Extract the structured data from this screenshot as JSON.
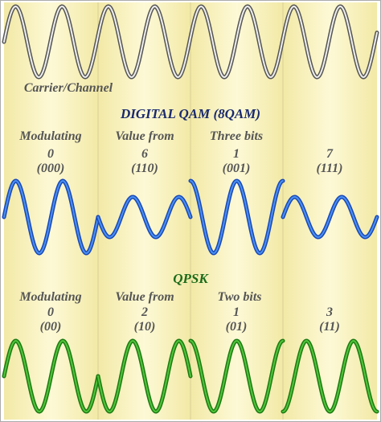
{
  "carrier": {
    "label": "Carrier/Channel"
  },
  "qam": {
    "title": "DIGITAL QAM (8QAM)",
    "header": [
      "Modulating",
      "Value from",
      "Three bits"
    ],
    "symbols": [
      {
        "value": "0",
        "bits": "(000)"
      },
      {
        "value": "6",
        "bits": "(110)"
      },
      {
        "value": "1",
        "bits": "(001)"
      },
      {
        "value": "7",
        "bits": "(111)"
      }
    ]
  },
  "qpsk": {
    "title": "QPSK",
    "header": [
      "Modulating",
      "Value from",
      "Two bits"
    ],
    "symbols": [
      {
        "value": "0",
        "bits": "(00)"
      },
      {
        "value": "2",
        "bits": "(10)"
      },
      {
        "value": "1",
        "bits": "(01)"
      },
      {
        "value": "3",
        "bits": "(11)"
      }
    ]
  }
}
